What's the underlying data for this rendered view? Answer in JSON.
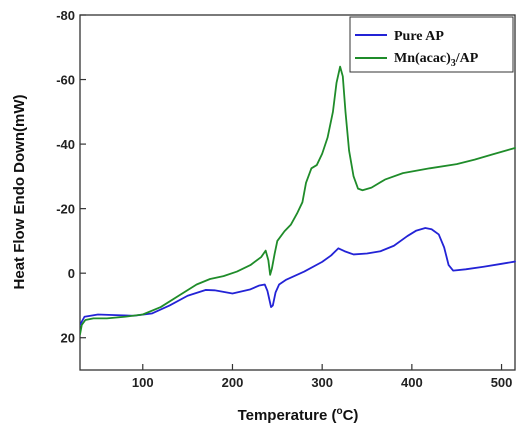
{
  "chart_data": {
    "type": "line",
    "title": "",
    "xlabel": "Temperature (°C)",
    "xlabel_parts": {
      "main": "Temperature (",
      "degree": "o",
      "unit": "C)"
    },
    "ylabel": "Heat Flow Endo Down(mW)",
    "xlim": [
      30,
      515
    ],
    "ylim": [
      -80,
      30
    ],
    "y_inverted": true,
    "x_ticks": [
      100,
      200,
      300,
      400,
      500
    ],
    "y_ticks": [
      -80,
      -60,
      -40,
      -20,
      0,
      20
    ],
    "grid": false,
    "legend_position": "top-right",
    "series": [
      {
        "name": "Pure AP",
        "color": "#2323d6",
        "x": [
          30,
          35,
          50,
          70,
          90,
          110,
          130,
          150,
          170,
          180,
          200,
          220,
          230,
          236,
          239,
          241,
          243,
          245,
          248,
          252,
          260,
          280,
          300,
          310,
          318,
          325,
          335,
          350,
          365,
          380,
          395,
          405,
          415,
          422,
          430,
          436,
          441,
          446,
          460,
          480,
          500,
          515
        ],
        "y": [
          16,
          13.5,
          12.8,
          13,
          13.2,
          12.5,
          10,
          7,
          5.2,
          5.3,
          6.3,
          5,
          3.8,
          3.5,
          5.5,
          8,
          10.5,
          10,
          6,
          3.5,
          2,
          -0.5,
          -3.5,
          -5.5,
          -7.7,
          -6.8,
          -5.8,
          -6.1,
          -6.8,
          -8.5,
          -11.5,
          -13.2,
          -14,
          -13.6,
          -12,
          -8,
          -2.5,
          -0.8,
          -1.2,
          -2,
          -2.9,
          -3.6
        ]
      },
      {
        "name": "Mn(acac)3/AP",
        "name_parts": {
          "main": "Mn(acac)",
          "sub": "3",
          "tail": "/AP"
        },
        "color": "#1f8c2a",
        "x": [
          30,
          32,
          36,
          45,
          60,
          80,
          100,
          120,
          140,
          160,
          175,
          190,
          205,
          220,
          232,
          237,
          240,
          242,
          244,
          247,
          250,
          258,
          265,
          272,
          278,
          282,
          288,
          294,
          300,
          306,
          312,
          316,
          320,
          323,
          326,
          330,
          335,
          340,
          345,
          355,
          370,
          390,
          420,
          450,
          470,
          490,
          515
        ],
        "y": [
          19,
          16,
          14.5,
          14,
          14,
          13.5,
          12.8,
          10.5,
          7,
          3.5,
          1.8,
          0.9,
          -0.5,
          -2.5,
          -5,
          -7,
          -4,
          0.5,
          -1.5,
          -6,
          -10,
          -13,
          -15,
          -18.5,
          -22,
          -28,
          -32.5,
          -33.5,
          -37,
          -42,
          -50,
          -59,
          -64,
          -61,
          -50,
          -38,
          -30,
          -26.2,
          -25.7,
          -26.5,
          -29,
          -31,
          -32.5,
          -33.8,
          -35.2,
          -36.8,
          -38.8
        ]
      }
    ]
  }
}
